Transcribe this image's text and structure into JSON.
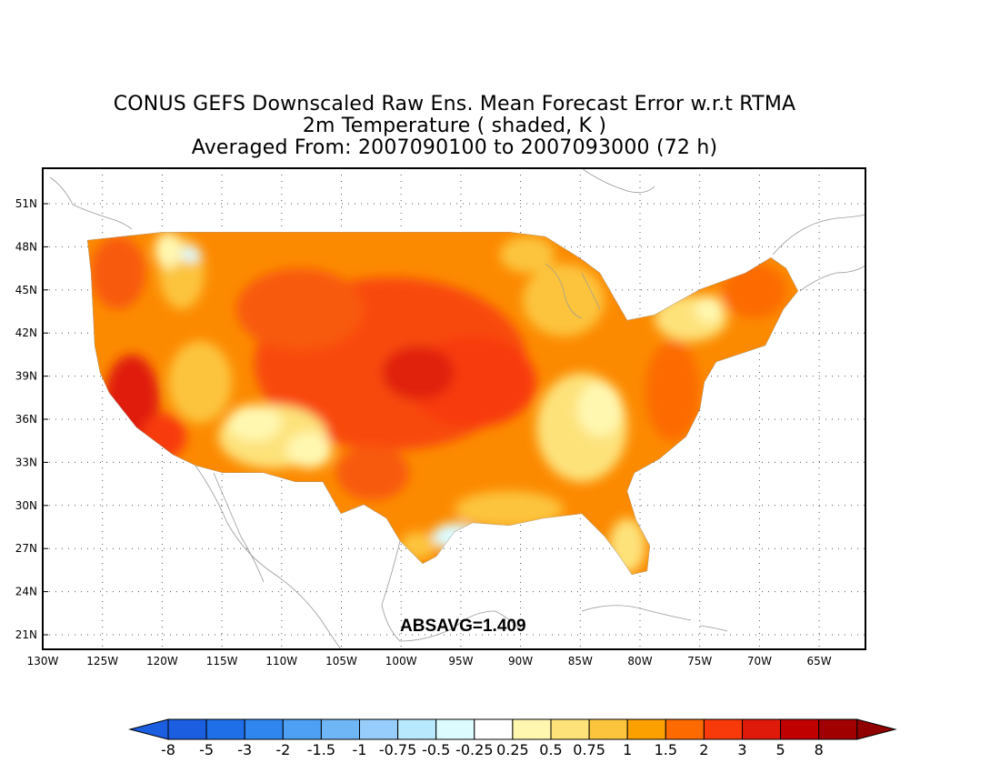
{
  "title": {
    "line1": "CONUS GEFS Downscaled Raw Ens. Mean Forecast Error w.r.t RTMA",
    "line2": "2m Temperature ( shaded, K )",
    "line3": "Averaged From: 2007090100 to 2007093000 (72 h)"
  },
  "stat_label": "ABSAVG=1.409",
  "map": {
    "lon_ticks": [
      "130W",
      "125W",
      "120W",
      "115W",
      "110W",
      "105W",
      "100W",
      "95W",
      "90W",
      "85W",
      "80W",
      "75W",
      "70W",
      "65W"
    ],
    "lat_ticks": [
      "21N",
      "24N",
      "27N",
      "30N",
      "33N",
      "36N",
      "39N",
      "42N",
      "45N",
      "48N",
      "51N"
    ],
    "grid": true,
    "coastline_color": "#9a9a9a"
  },
  "colorbar": {
    "labels": [
      "-8",
      "-5",
      "-3",
      "-2",
      "-1.5",
      "-1",
      "-0.75",
      "-0.5",
      "-0.25",
      "0.25",
      "0.5",
      "0.75",
      "1",
      "1.5",
      "2",
      "3",
      "5",
      "8"
    ],
    "colors": [
      "#1b5ee0",
      "#1f6fe8",
      "#2f86ef",
      "#4da0f3",
      "#6fb6f7",
      "#96cdfa",
      "#b8e8fb",
      "#dcfbff",
      "#ffffff",
      "#fff7b0",
      "#fde27a",
      "#fcc43c",
      "#fca000",
      "#fc6a00",
      "#f83a0a",
      "#e01a0a",
      "#c00000",
      "#a00000"
    ],
    "under_color": "#1b5ee0",
    "over_color": "#900000"
  }
}
